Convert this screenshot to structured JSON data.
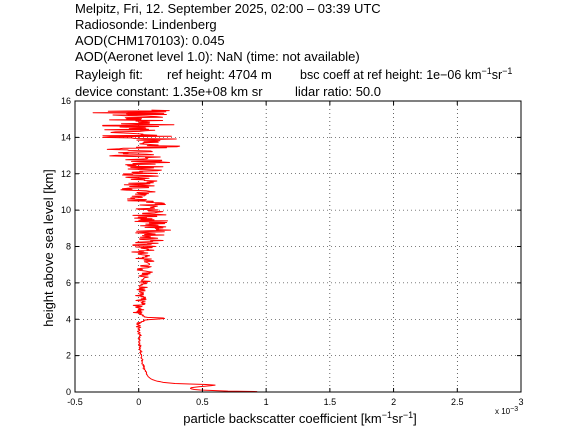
{
  "header": {
    "lines": [
      "Melpitz, Fri, 12. September 2025, 02:00 – 03:39 UTC",
      "Radiosonde: Lindenberg",
      "AOD(CHM170103): 0.045",
      "AOD(Aeronet level 1.0): NaN   (time: not available)"
    ],
    "rayleigh_label": "Rayleigh fit:",
    "ref_height": "ref height: 4704 m",
    "bsc_coeff_prefix": "bsc coeff at ref height: 1e−06 km",
    "bsc_coeff_exp1": "−1",
    "bsc_coeff_sr": "sr",
    "bsc_coeff_exp2": "−1",
    "device_constant": "device constant: 1.35e+08 km sr",
    "lidar_ratio": "lidar ratio: 50.0"
  },
  "axes": {
    "xlabel_prefix": "particle backscatter coefficient [km",
    "xlabel_exp1": "−1",
    "xlabel_sr": "sr",
    "xlabel_exp2": "−1",
    "xlabel_suffix": "]",
    "x_multiplier_base": "x 10",
    "x_multiplier_exp": "−3",
    "ylabel": "height above sea level [km]"
  },
  "colors": {
    "line": "#ff0000",
    "axis": "#000000",
    "grid": "#000000",
    "background": "#ffffff"
  },
  "chart_data": {
    "type": "line",
    "grid": true,
    "xlim": [
      -0.5,
      3
    ],
    "ylim": [
      0,
      16
    ],
    "x_scale_factor": 0.001,
    "xticks": [
      -0.5,
      0,
      0.5,
      1,
      1.5,
      2,
      2.5,
      3
    ],
    "xtick_labels": [
      "-0.5",
      "0",
      "0.5",
      "1",
      "1.5",
      "2",
      "2.5",
      "3"
    ],
    "yticks": [
      0,
      2,
      4,
      6,
      8,
      10,
      12,
      14,
      16
    ],
    "ytick_labels": [
      "0",
      "2",
      "4",
      "6",
      "8",
      "10",
      "12",
      "14",
      "16"
    ],
    "series": [
      {
        "color": "#ff0000",
        "profile": [
          [
            0.93,
            0.02
          ],
          [
            0.7,
            0.05
          ],
          [
            0.5,
            0.1
          ],
          [
            0.42,
            0.15
          ],
          [
            0.4,
            0.22
          ],
          [
            0.48,
            0.3
          ],
          [
            0.56,
            0.34
          ],
          [
            0.6,
            0.38
          ],
          [
            0.5,
            0.42
          ],
          [
            0.3,
            0.46
          ],
          [
            0.2,
            0.52
          ],
          [
            0.14,
            0.6
          ],
          [
            0.1,
            0.7
          ],
          [
            0.08,
            0.8
          ],
          [
            0.07,
            0.9
          ],
          [
            0.06,
            1.0
          ],
          [
            0.06,
            1.1
          ],
          [
            0.05,
            1.2
          ],
          [
            0.04,
            1.3
          ],
          [
            0.04,
            1.4
          ],
          [
            0.035,
            1.5
          ],
          [
            0.03,
            1.6
          ],
          [
            0.03,
            1.7
          ],
          [
            0.025,
            1.8
          ],
          [
            0.02,
            1.9
          ],
          [
            0.02,
            2.0
          ],
          [
            0.015,
            2.2
          ],
          [
            0.01,
            2.4
          ],
          [
            0.01,
            2.6
          ],
          [
            0.005,
            2.8
          ],
          [
            0.005,
            3.0
          ],
          [
            0.005,
            3.2
          ],
          [
            0.0,
            3.4
          ],
          [
            0.0,
            3.6
          ],
          [
            0.0,
            3.8
          ],
          [
            0.02,
            3.9
          ],
          [
            0.05,
            3.95
          ],
          [
            0.12,
            4.0
          ],
          [
            0.25,
            4.05
          ],
          [
            0.08,
            4.1
          ],
          [
            0.02,
            4.2
          ],
          [
            0.0,
            4.4
          ],
          [
            0.0,
            4.6
          ],
          [
            0.0,
            4.8
          ],
          [
            0.02,
            5.0
          ],
          [
            0.03,
            5.5
          ],
          [
            0.04,
            6.0
          ],
          [
            0.04,
            6.5
          ],
          [
            0.05,
            7.0
          ],
          [
            0.05,
            7.5
          ],
          [
            0.05,
            8.0
          ],
          [
            0.07,
            8.5
          ],
          [
            0.08,
            9.0
          ],
          [
            0.08,
            9.5
          ],
          [
            0.06,
            10.0
          ],
          [
            0.05,
            10.5
          ],
          [
            0.05,
            11.0
          ],
          [
            0.04,
            11.5
          ],
          [
            0.04,
            12.0
          ],
          [
            0.03,
            12.5
          ],
          [
            0.02,
            13.0
          ],
          [
            0.01,
            13.5
          ],
          [
            0.0,
            14.0
          ],
          [
            -0.01,
            14.5
          ],
          [
            -0.01,
            15.0
          ],
          [
            -0.01,
            15.5
          ]
        ],
        "noise_profile": [
          [
            0.0,
            0.0
          ],
          [
            2.0,
            0.01
          ],
          [
            3.5,
            0.015
          ],
          [
            3.9,
            0.03
          ],
          [
            4.5,
            0.04
          ],
          [
            6.0,
            0.05
          ],
          [
            7.0,
            0.07
          ],
          [
            7.5,
            0.1
          ],
          [
            8.0,
            0.12
          ],
          [
            9.0,
            0.14
          ],
          [
            10.0,
            0.15
          ],
          [
            11.0,
            0.16
          ],
          [
            12.0,
            0.18
          ],
          [
            13.0,
            0.24
          ],
          [
            14.0,
            0.28
          ],
          [
            15.0,
            0.3
          ],
          [
            15.5,
            0.32
          ]
        ],
        "h_start": 0.02,
        "h_end": 15.5,
        "h_step": 0.03
      }
    ]
  }
}
